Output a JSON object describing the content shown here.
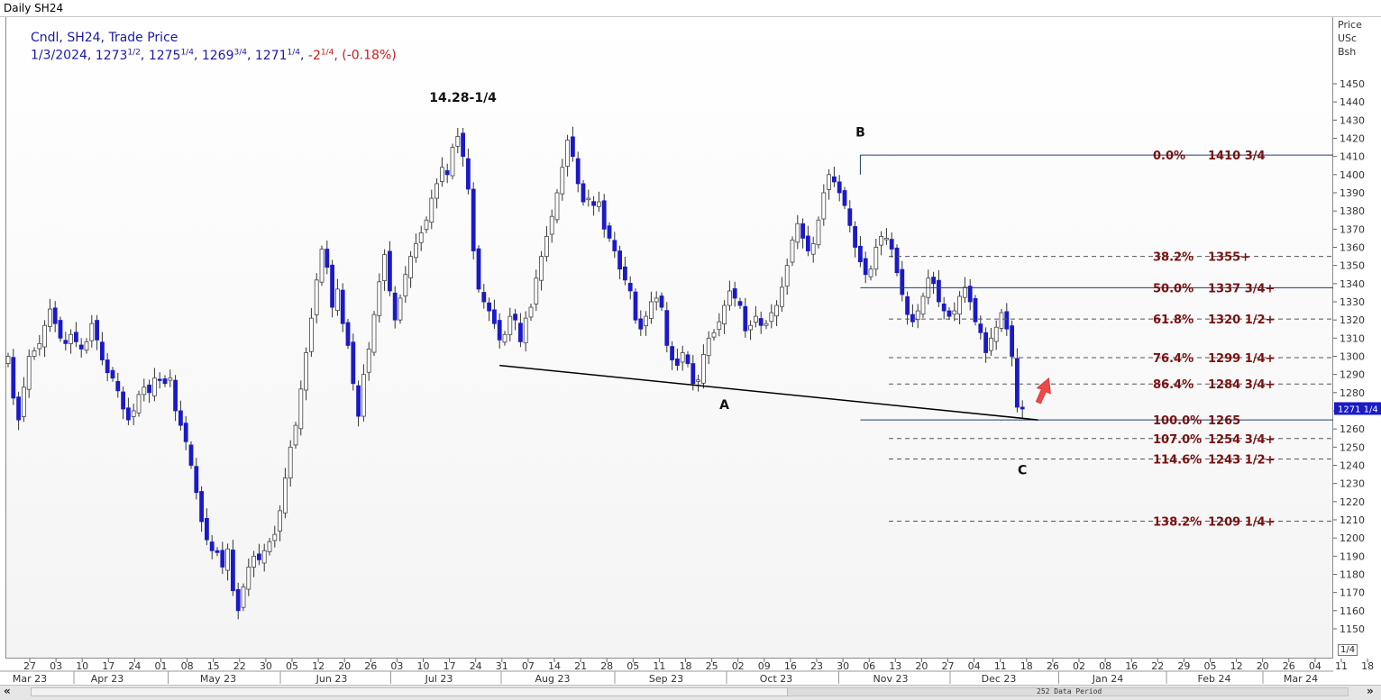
{
  "window": {
    "title": "Daily SH24"
  },
  "legend": {
    "line1": "Cndl, SH24, Trade Price",
    "date": "1/3/2024,",
    "open_int": "1273",
    "open_frac": "1/2",
    "high_int": "1275",
    "high_frac": "1/4",
    "low_int": "1269",
    "low_frac": "3/4",
    "close_int": "1271",
    "close_frac": "1/4",
    "change_int": "-2",
    "change_frac": "1/4",
    "change_pct": "(-0.18%)"
  },
  "price_axis": {
    "header": [
      "Price",
      "USc",
      "Bsh"
    ],
    "current_label": "1271 1/4"
  },
  "page_indicator": "1/4",
  "period_label": "252 Data Period",
  "nav": {
    "left": "«",
    "right": "»"
  },
  "colors": {
    "up_candle": "#ffffff",
    "down_candle": "#1a1ac8",
    "fib_text": "#7a1010",
    "fib_line": "#1f3f6f",
    "legend": "#1a1aa8",
    "change": "#cc1b1b",
    "arrow": "#f04848"
  },
  "chart_data": {
    "type": "candlestick",
    "title": "Daily SH24",
    "ylabel": "Price USc Bsh",
    "ylim": [
      1140,
      1460
    ],
    "y_ticks": [
      1150,
      1160,
      1170,
      1180,
      1190,
      1200,
      1210,
      1220,
      1230,
      1240,
      1250,
      1260,
      1270,
      1280,
      1290,
      1300,
      1310,
      1320,
      1330,
      1340,
      1350,
      1360,
      1370,
      1380,
      1390,
      1400,
      1410,
      1420,
      1430,
      1440,
      1450
    ],
    "x_day_labels": [
      "27",
      "03",
      "10",
      "17",
      "24",
      "01",
      "08",
      "15",
      "22",
      "30",
      "05",
      "12",
      "20",
      "26",
      "03",
      "10",
      "17",
      "24",
      "31",
      "07",
      "14",
      "21",
      "28",
      "05",
      "11",
      "18",
      "25",
      "02",
      "09",
      "16",
      "23",
      "30",
      "06",
      "13",
      "20",
      "27",
      "04",
      "11",
      "18",
      "26",
      "02",
      "08",
      "16",
      "22",
      "29",
      "05",
      "12",
      "20",
      "26",
      "04",
      "11",
      "18"
    ],
    "x_month_labels": [
      "Mar 23",
      "Apr 23",
      "May 23",
      "Jun 23",
      "Jul 23",
      "Aug 23",
      "Sep 23",
      "Oct 23",
      "Nov 23",
      "Dec 23",
      "Jan 24",
      "Feb 24",
      "Mar 24"
    ],
    "closes": [
      1300,
      1277,
      1265,
      1283,
      1300,
      1303,
      1307,
      1317,
      1326,
      1318,
      1310,
      1307,
      1312,
      1308,
      1304,
      1308,
      1318,
      1309,
      1298,
      1291,
      1288,
      1281,
      1271,
      1265,
      1270,
      1279,
      1283,
      1280,
      1288,
      1287,
      1285,
      1288,
      1270,
      1262,
      1253,
      1240,
      1225,
      1209,
      1199,
      1193,
      1192,
      1184,
      1194,
      1171,
      1160,
      1173,
      1184,
      1190,
      1188,
      1193,
      1198,
      1202,
      1215,
      1233,
      1250,
      1262,
      1282,
      1302,
      1321,
      1342,
      1359,
      1349,
      1327,
      1337,
      1318,
      1306,
      1285,
      1267,
      1290,
      1304,
      1323,
      1341,
      1356,
      1336,
      1320,
      1332,
      1345,
      1355,
      1362,
      1368,
      1375,
      1387,
      1395,
      1404,
      1400,
      1415,
      1421,
      1410,
      1392,
      1358,
      1337,
      1330,
      1325,
      1318,
      1309,
      1312,
      1322,
      1320,
      1308,
      1321,
      1327,
      1343,
      1355,
      1366,
      1377,
      1390,
      1404,
      1419,
      1410,
      1395,
      1385,
      1387,
      1383,
      1385,
      1370,
      1365,
      1358,
      1348,
      1342,
      1336,
      1320,
      1315,
      1322,
      1330,
      1332,
      1327,
      1306,
      1298,
      1295,
      1302,
      1296,
      1285,
      1287,
      1301,
      1310,
      1313,
      1319,
      1328,
      1336,
      1332,
      1328,
      1314,
      1317,
      1322,
      1317,
      1318,
      1324,
      1328,
      1338,
      1350,
      1364,
      1373,
      1365,
      1358,
      1362,
      1375,
      1390,
      1400,
      1396,
      1390,
      1383,
      1372,
      1360,
      1352,
      1345,
      1348,
      1360,
      1366,
      1365,
      1359,
      1346,
      1334,
      1323,
      1319,
      1325,
      1333,
      1343,
      1340,
      1330,
      1325,
      1322,
      1325,
      1333,
      1338,
      1330,
      1319,
      1313,
      1302,
      1310,
      1316,
      1324,
      1315,
      1300,
      1272,
      1271
    ],
    "fibonacci": [
      {
        "level": "0.0%",
        "price_label": "1410 3/4",
        "value": 1410.75,
        "style": "solid"
      },
      {
        "level": "38.2%",
        "price_label": "1355+",
        "value": 1355,
        "style": "dashed"
      },
      {
        "level": "50.0%",
        "price_label": "1337 3/4+",
        "value": 1337.75,
        "style": "solid"
      },
      {
        "level": "61.8%",
        "price_label": "1320 1/2+",
        "value": 1320.5,
        "style": "dashed"
      },
      {
        "level": "76.4%",
        "price_label": "1299 1/4+",
        "value": 1299.25,
        "style": "dashed"
      },
      {
        "level": "86.4%",
        "price_label": "1284 3/4+",
        "value": 1284.75,
        "style": "dashed"
      },
      {
        "level": "100.0%",
        "price_label": "1265",
        "value": 1265,
        "style": "solid"
      },
      {
        "level": "107.0%",
        "price_label": "1254 3/4+",
        "value": 1254.75,
        "style": "dashed"
      },
      {
        "level": "114.6%",
        "price_label": "1243 1/2+",
        "value": 1243.5,
        "style": "dashed"
      },
      {
        "level": "138.2%",
        "price_label": "1209 1/4+",
        "value": 1209.25,
        "style": "dashed"
      }
    ],
    "annotations": [
      {
        "text": "14.28-1/4",
        "bar": 87,
        "value": 1440
      },
      {
        "text": "B",
        "bar": 163,
        "value": 1421
      },
      {
        "text": "A",
        "bar": 137,
        "value": 1271
      },
      {
        "text": "C",
        "bar": 194,
        "value": 1235
      }
    ],
    "trendline": {
      "from": {
        "bar": 94,
        "value": 1295
      },
      "to": {
        "bar": 197,
        "value": 1265
      }
    },
    "grid": false
  }
}
